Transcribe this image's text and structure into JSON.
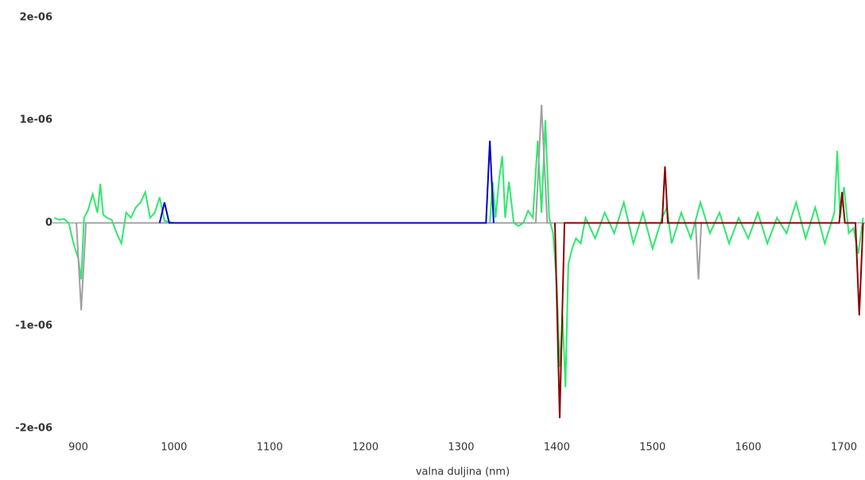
{
  "chart_data": {
    "type": "line",
    "x_label": "valna duljina (nm)",
    "xlim": [
      873,
      1722
    ],
    "xticks": [
      900,
      1000,
      1100,
      1200,
      1300,
      1400,
      1500,
      1600,
      1700
    ],
    "ylim": [
      -2.03e-06,
      2.03e-06
    ],
    "yticks": [
      {
        "value": 2e-06,
        "label": "2e-06"
      },
      {
        "value": 1e-06,
        "label": "1e-06"
      },
      0,
      {
        "value": -1e-06,
        "label": "-1e-06"
      },
      {
        "value": -2e-06,
        "label": "-2e-06"
      }
    ],
    "grid": false,
    "series": [
      {
        "color": "#2ee86e",
        "x": [
          875,
          880,
          885,
          890,
          895,
          900,
          903,
          906,
          910,
          915,
          920,
          923,
          926,
          930,
          935,
          940,
          945,
          950,
          955,
          960,
          965,
          970,
          975,
          980,
          985,
          990,
          1000,
          1020,
          1330,
          1333,
          1336,
          1340,
          1343,
          1346,
          1350,
          1355,
          1360,
          1365,
          1370,
          1375,
          1380,
          1384,
          1388,
          1392,
          1396,
          1400,
          1403,
          1406,
          1409,
          1412,
          1416,
          1420,
          1425,
          1430,
          1440,
          1450,
          1460,
          1470,
          1480,
          1490,
          1500,
          1510,
          1515,
          1520,
          1530,
          1540,
          1550,
          1560,
          1570,
          1580,
          1590,
          1600,
          1610,
          1620,
          1630,
          1640,
          1650,
          1660,
          1670,
          1680,
          1690,
          1693,
          1696,
          1700,
          1705,
          1710,
          1715,
          1720
        ],
        "values": [
          5e-08,
          3e-08,
          4e-08,
          0,
          -2e-07,
          -3.5e-07,
          -5.5e-07,
          5e-08,
          1.2e-07,
          2.8e-07,
          1e-07,
          3.8e-07,
          8e-08,
          5e-08,
          3e-08,
          -1e-07,
          -2e-07,
          1e-07,
          5e-08,
          1.5e-07,
          2e-07,
          3e-07,
          5e-08,
          1e-07,
          2.5e-07,
          2e-08,
          0,
          0,
          0,
          4e-07,
          5e-08,
          4.5e-07,
          6.5e-07,
          5e-08,
          4e-07,
          0,
          -3e-08,
          0,
          1.2e-07,
          5e-08,
          8e-07,
          1e-07,
          1e-06,
          5e-08,
          -1e-07,
          -6e-07,
          -1.4e-06,
          -9e-07,
          -1.6e-06,
          -4e-07,
          -2.5e-07,
          -1.5e-07,
          -2e-07,
          5e-08,
          -1.5e-07,
          1e-07,
          -1e-07,
          2e-07,
          -2e-07,
          1e-07,
          -2.5e-07,
          5e-08,
          1.5e-07,
          -2e-07,
          1e-07,
          -1.5e-07,
          2e-07,
          -1e-07,
          1e-07,
          -2e-07,
          5e-08,
          -1.5e-07,
          1e-07,
          -2e-07,
          5e-08,
          -1e-07,
          2e-07,
          -1.5e-07,
          1.5e-07,
          -2e-07,
          1e-07,
          7e-07,
          5e-08,
          3.5e-07,
          -1e-07,
          -5e-08,
          -3e-07,
          5e-08
        ]
      },
      {
        "color": "#a0a0a0",
        "x": [
          898,
          903,
          908,
          1378,
          1384,
          1390,
          1545,
          1548,
          1551
        ],
        "values": [
          0,
          -8.5e-07,
          0,
          0,
          1.15e-06,
          0,
          0,
          -5.5e-07,
          0
        ]
      },
      {
        "color": "#8b0000",
        "x": [
          1398,
          1403,
          1408,
          1510,
          1513,
          1516,
          1695,
          1698,
          1701,
          1712,
          1716,
          1720
        ],
        "values": [
          0,
          -1.9e-06,
          0,
          0,
          5.5e-07,
          0,
          0,
          3e-07,
          0,
          0,
          -9e-07,
          0
        ]
      },
      {
        "color": "#0000cc",
        "x": [
          985,
          990,
          995,
          1326,
          1330,
          1334
        ],
        "values": [
          0,
          2e-07,
          0,
          0,
          8e-07,
          0
        ]
      }
    ]
  }
}
